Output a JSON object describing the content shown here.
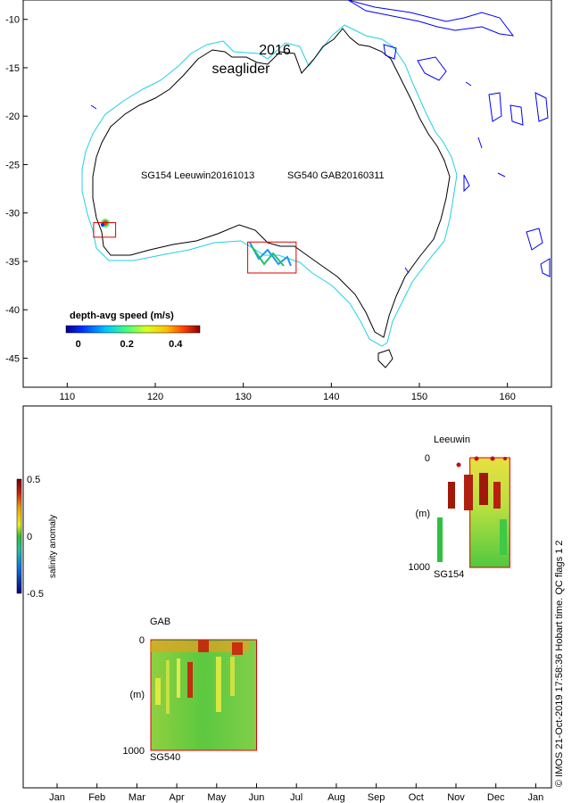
{
  "colors": {
    "coast": "#000000",
    "shelf": "#20d0e8",
    "islands": "#0000ff",
    "region_box": "#e00000",
    "frame": "#000000"
  },
  "chart_data": [
    {
      "type": "map",
      "title_line1": "2016",
      "title_line2": "seaglider",
      "x_ticks": [
        "110",
        "120",
        "130",
        "140",
        "150",
        "160"
      ],
      "x_values": [
        110,
        120,
        130,
        140,
        150,
        160
      ],
      "y_ticks": [
        "-10",
        "-15",
        "-20",
        "-25",
        "-30",
        "-35",
        "-40",
        "-45"
      ],
      "y_values": [
        -10,
        -15,
        -20,
        -25,
        -30,
        -35,
        -40,
        -45
      ],
      "xlim": [
        105,
        165
      ],
      "ylim": [
        -48,
        -8
      ],
      "deployments": [
        {
          "label": "SG154 Leeuwin20161013",
          "box_lon": [
            113,
            115.5
          ],
          "box_lat": [
            -31,
            -32.5
          ]
        },
        {
          "label": "SG540 GAB20160311",
          "box_lon": [
            130.5,
            136
          ],
          "box_lat": [
            -33,
            -36.2
          ]
        }
      ],
      "colorbar": {
        "title": "depth-avg speed (m/s)",
        "ticks": [
          "0",
          "0.2",
          "0.4"
        ],
        "tick_values": [
          0,
          0.2,
          0.4
        ],
        "range": [
          -0.05,
          0.5
        ]
      }
    },
    {
      "type": "heatmap",
      "months": [
        "Jan",
        "Feb",
        "Mar",
        "Apr",
        "May",
        "Jun",
        "Jul",
        "Aug",
        "Sep",
        "Oct",
        "Nov",
        "Dec",
        "Jan"
      ],
      "colorbar": {
        "label": "salinity anomaly",
        "ticks": [
          "0.5",
          "0",
          "-0.5"
        ],
        "tick_values": [
          0.5,
          0,
          -0.5
        ],
        "range": [
          -0.5,
          0.5
        ]
      },
      "panels": [
        {
          "region": "Leeuwin",
          "glider": "SG154",
          "depth_top": "0",
          "depth_bottom": "1000",
          "depth_unit": "(m)",
          "month_start": 10.35,
          "month_end": 11.35
        },
        {
          "region": "GAB",
          "glider": "SG540",
          "depth_top": "0",
          "depth_bottom": "1000",
          "depth_unit": "(m)",
          "month_start": 2.35,
          "month_end": 5.0
        }
      ]
    }
  ],
  "footer": {
    "credit": "© IMOS 21-Oct-2019 17:58:36 Hobart time. QC flags 1  2"
  }
}
